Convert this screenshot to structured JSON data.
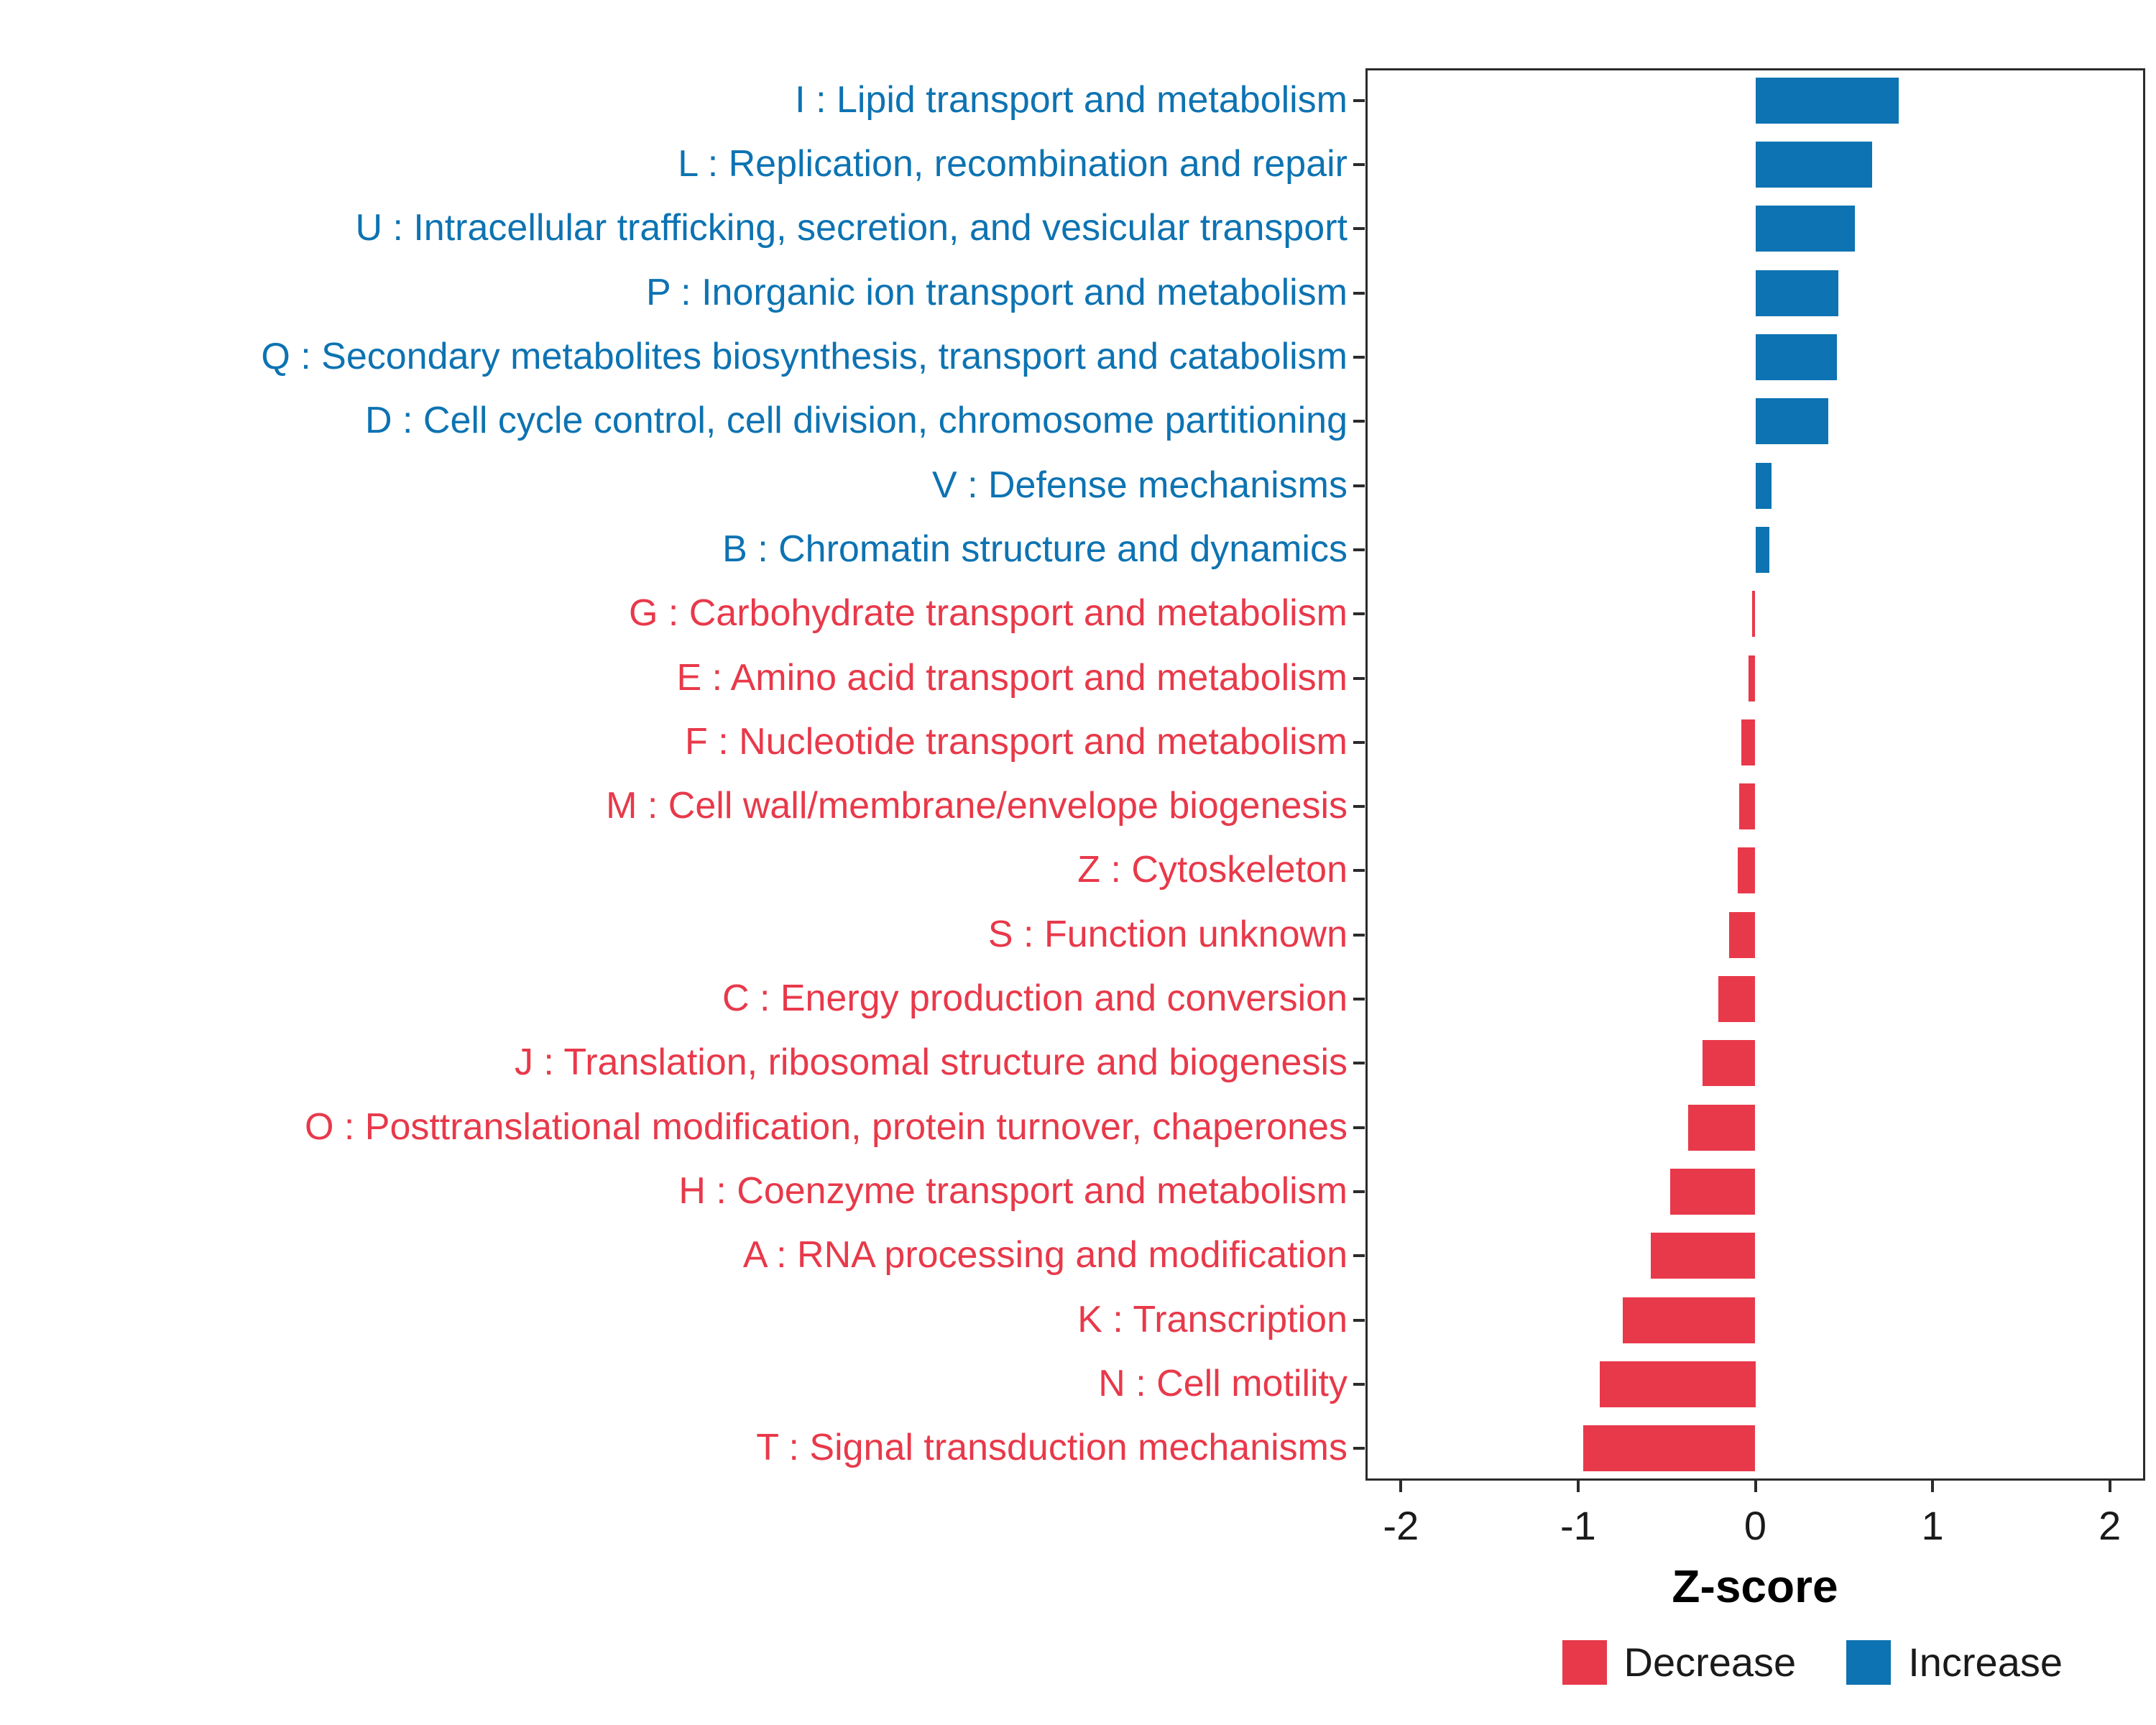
{
  "axis": {
    "x_title": "Z-score"
  },
  "legend": {
    "items": [
      {
        "label": "Decrease",
        "color": "#e8394a"
      },
      {
        "label": "Increase",
        "color": "#0d73b2"
      }
    ]
  },
  "chart_data": {
    "type": "bar",
    "orientation": "horizontal",
    "title": "",
    "xlabel": "Z-score",
    "ylabel": "",
    "xlim": [
      -2.2,
      2.2
    ],
    "xticks": [
      -2,
      -1,
      0,
      1,
      2
    ],
    "grid": false,
    "legend_position": "bottom-right",
    "colors": {
      "Increase": "#0d73b2",
      "Decrease": "#e8394a"
    },
    "categories": [
      {
        "code": "I",
        "label": "I : Lipid transport and metabolism",
        "value": 0.81,
        "group": "Increase"
      },
      {
        "code": "L",
        "label": "L : Replication, recombination and repair",
        "value": 0.66,
        "group": "Increase"
      },
      {
        "code": "U",
        "label": "U : Intracellular trafficking, secretion, and vesicular transport",
        "value": 0.56,
        "group": "Increase"
      },
      {
        "code": "P",
        "label": "P : Inorganic ion transport and metabolism",
        "value": 0.47,
        "group": "Increase"
      },
      {
        "code": "Q",
        "label": "Q : Secondary metabolites biosynthesis, transport and catabolism",
        "value": 0.46,
        "group": "Increase"
      },
      {
        "code": "D",
        "label": "D : Cell cycle control, cell division, chromosome partitioning",
        "value": 0.41,
        "group": "Increase"
      },
      {
        "code": "V",
        "label": "V : Defense mechanisms",
        "value": 0.09,
        "group": "Increase"
      },
      {
        "code": "B",
        "label": "B : Chromatin structure and dynamics",
        "value": 0.08,
        "group": "Increase"
      },
      {
        "code": "G",
        "label": "G : Carbohydrate transport and metabolism",
        "value": -0.02,
        "group": "Decrease"
      },
      {
        "code": "E",
        "label": "E : Amino acid transport and metabolism",
        "value": -0.04,
        "group": "Decrease"
      },
      {
        "code": "F",
        "label": "F : Nucleotide transport and metabolism",
        "value": -0.08,
        "group": "Decrease"
      },
      {
        "code": "M",
        "label": "M : Cell wall/membrane/envelope biogenesis",
        "value": -0.09,
        "group": "Decrease"
      },
      {
        "code": "Z",
        "label": "Z : Cytoskeleton",
        "value": -0.1,
        "group": "Decrease"
      },
      {
        "code": "S",
        "label": "S : Function unknown",
        "value": -0.15,
        "group": "Decrease"
      },
      {
        "code": "C",
        "label": "C : Energy production and conversion",
        "value": -0.21,
        "group": "Decrease"
      },
      {
        "code": "J",
        "label": "J : Translation, ribosomal structure and biogenesis",
        "value": -0.3,
        "group": "Decrease"
      },
      {
        "code": "O",
        "label": "O : Posttranslational modification, protein turnover, chaperones",
        "value": -0.38,
        "group": "Decrease"
      },
      {
        "code": "H",
        "label": "H : Coenzyme transport and metabolism",
        "value": -0.48,
        "group": "Decrease"
      },
      {
        "code": "A",
        "label": "A : RNA processing and modification",
        "value": -0.59,
        "group": "Decrease"
      },
      {
        "code": "K",
        "label": "K : Transcription",
        "value": -0.75,
        "group": "Decrease"
      },
      {
        "code": "N",
        "label": "N : Cell motility",
        "value": -0.88,
        "group": "Decrease"
      },
      {
        "code": "T",
        "label": "T : Signal transduction mechanisms",
        "value": -0.97,
        "group": "Decrease"
      }
    ]
  }
}
